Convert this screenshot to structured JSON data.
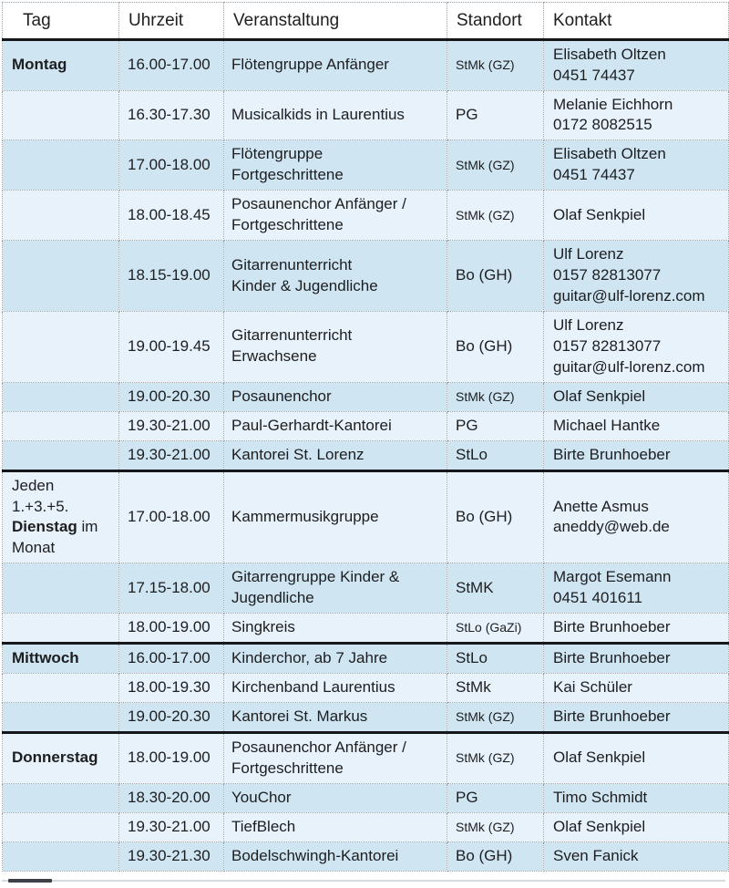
{
  "table": {
    "colors": {
      "row_dark": "#cfe5f2",
      "row_light": "#e7f2fa",
      "section_border": "#15171b",
      "dotted_border": "#98a1a8",
      "text": "#1d1e20"
    },
    "columns": [
      {
        "key": "tag",
        "label": "Tag"
      },
      {
        "key": "uhrzeit",
        "label": "Uhrzeit"
      },
      {
        "key": "veranstaltung",
        "label": "Veranstaltung"
      },
      {
        "key": "standort",
        "label": "Standort"
      },
      {
        "key": "kontakt",
        "label": "Kontakt"
      }
    ],
    "rows": [
      {
        "tag_day": "Montag",
        "uhrzeit": "16.00-17.00",
        "veranstaltung": [
          "Flötengruppe Anfänger"
        ],
        "standort": "StMk (GZ)",
        "standort_small": true,
        "kontakt": [
          "Elisabeth Oltzen",
          "0451 74437"
        ],
        "section_start": true
      },
      {
        "uhrzeit": "16.30-17.30",
        "veranstaltung": [
          "Musicalkids in Laurentius"
        ],
        "standort": "PG",
        "kontakt": [
          "Melanie Eichhorn",
          "0172 8082515"
        ]
      },
      {
        "uhrzeit": "17.00-18.00",
        "veranstaltung": [
          "Flötengruppe",
          "Fortgeschrittene"
        ],
        "standort": "StMk (GZ)",
        "standort_small": true,
        "kontakt": [
          "Elisabeth Oltzen",
          "0451 74437"
        ]
      },
      {
        "uhrzeit": "18.00-18.45",
        "veranstaltung": [
          "Posaunenchor Anfänger /",
          "Fortgeschrittene"
        ],
        "standort": "StMk (GZ)",
        "standort_small": true,
        "kontakt": [
          "Olaf Senkpiel"
        ]
      },
      {
        "uhrzeit": "18.15-19.00",
        "veranstaltung": [
          "Gitarrenunterricht",
          "Kinder & Jugendliche"
        ],
        "standort": "Bo (GH)",
        "kontakt": [
          "Ulf Lorenz",
          "0157 82813077",
          "guitar@ulf-lorenz.com"
        ]
      },
      {
        "uhrzeit": "19.00-19.45",
        "veranstaltung": [
          "Gitarrenunterricht",
          "Erwachsene"
        ],
        "standort": "Bo (GH)",
        "kontakt": [
          "Ulf Lorenz",
          "0157 82813077",
          "guitar@ulf-lorenz.com"
        ]
      },
      {
        "uhrzeit": "19.00-20.30",
        "veranstaltung": [
          "Posaunenchor"
        ],
        "standort": "StMk (GZ)",
        "standort_small": true,
        "kontakt": [
          "Olaf Senkpiel"
        ]
      },
      {
        "uhrzeit": "19.30-21.00",
        "veranstaltung": [
          "Paul-Gerhardt-Kantorei"
        ],
        "standort": "PG",
        "kontakt": [
          "Michael Hantke"
        ]
      },
      {
        "uhrzeit": "19.30-21.00",
        "veranstaltung": [
          "Kantorei St. Lorenz"
        ],
        "standort": "StLo",
        "kontakt": [
          "Birte Brunhoeber"
        ]
      },
      {
        "tag_pre": "Jeden 1.+3.+5. ",
        "tag_day": "Dienstag",
        "tag_post": " im Monat",
        "uhrzeit": "17.00-18.00",
        "veranstaltung": [
          "Kammermusikgruppe"
        ],
        "standort": "Bo (GH)",
        "kontakt": [
          "Anette Asmus",
          "aneddy@web.de"
        ],
        "section_start": true
      },
      {
        "uhrzeit": "17.15-18.00",
        "veranstaltung": [
          "Gitarrengruppe Kinder &",
          "Jugendliche"
        ],
        "standort": "StMK",
        "kontakt": [
          "Margot Esemann",
          "0451 401611"
        ]
      },
      {
        "uhrzeit": "18.00-19.00",
        "veranstaltung": [
          "Singkreis"
        ],
        "standort": "StLo (GaZi)",
        "standort_small": true,
        "kontakt": [
          "Birte Brunhoeber"
        ]
      },
      {
        "tag_day": "Mittwoch",
        "uhrzeit": "16.00-17.00",
        "veranstaltung": [
          "Kinderchor, ab 7 Jahre"
        ],
        "standort": "StLo",
        "kontakt": [
          "Birte Brunhoeber"
        ],
        "section_start": true
      },
      {
        "uhrzeit": "18.00-19.30",
        "veranstaltung": [
          "Kirchenband Laurentius"
        ],
        "standort": "StMk",
        "kontakt": [
          "Kai Schüler"
        ]
      },
      {
        "uhrzeit": "19.00-20.30",
        "veranstaltung": [
          "Kantorei St. Markus"
        ],
        "standort": "StMk (GZ)",
        "standort_small": true,
        "kontakt": [
          "Birte Brunhoeber"
        ]
      },
      {
        "tag_day": "Donnerstag",
        "uhrzeit": "18.00-19.00",
        "veranstaltung": [
          "Posaunenchor Anfänger /",
          "Fortgeschrittene"
        ],
        "standort": "StMk (GZ)",
        "standort_small": true,
        "kontakt": [
          "Olaf Senkpiel"
        ],
        "section_start": true
      },
      {
        "uhrzeit": "18.30-20.00",
        "veranstaltung": [
          "YouChor"
        ],
        "standort": "PG",
        "kontakt": [
          "Timo Schmidt"
        ]
      },
      {
        "uhrzeit": "19.30-21.00",
        "veranstaltung": [
          "TiefBlech"
        ],
        "standort": "StMk (GZ)",
        "standort_small": true,
        "kontakt": [
          "Olaf Senkpiel"
        ]
      },
      {
        "uhrzeit": "19.30-21.30",
        "veranstaltung": [
          "Bodelschwingh-Kantorei"
        ],
        "standort": "Bo (GH)",
        "kontakt": [
          "Sven Fanick"
        ]
      }
    ]
  }
}
